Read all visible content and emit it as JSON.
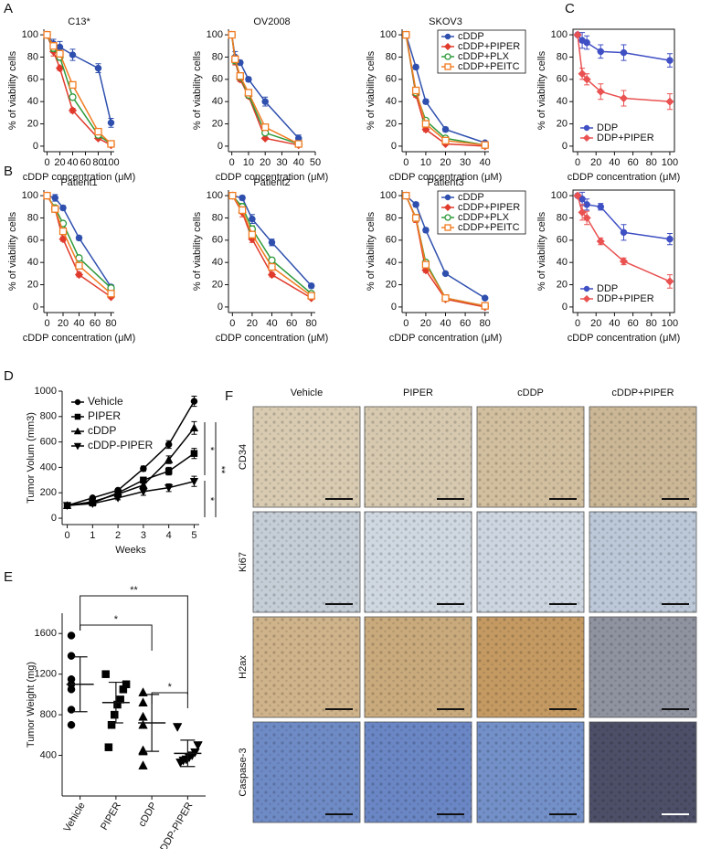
{
  "chart_data": [
    {
      "type": "line",
      "panel": "A",
      "title": "C13*",
      "xlabel": "cDDP concentration (μM)",
      "ylabel": "% of viability cells",
      "x": [
        0,
        10,
        20,
        40,
        80,
        100
      ],
      "xlim": [
        -5,
        105
      ],
      "xticks": [
        0,
        20,
        40,
        60,
        80,
        100
      ],
      "ylim": [
        -5,
        105
      ],
      "yticks": [
        0,
        20,
        40,
        60,
        80,
        100
      ],
      "series": [
        {
          "name": "cDDP",
          "color": "#2e4fae",
          "marker": "circle",
          "values": [
            100,
            92,
            89,
            82,
            70,
            21
          ],
          "errors": [
            1,
            4,
            5,
            5,
            4,
            4
          ]
        },
        {
          "name": "cDDP+PIPER",
          "color": "#e03a2c",
          "marker": "diamond",
          "values": [
            100,
            85,
            70,
            32,
            7,
            1
          ],
          "errors": [
            1,
            4,
            2,
            2,
            1,
            1
          ]
        },
        {
          "name": "cDDP+PLX",
          "color": "#2e9a3a",
          "marker": "open-circle",
          "values": [
            100,
            88,
            80,
            44,
            10,
            2
          ],
          "errors": [
            1,
            3,
            3,
            2,
            2,
            1
          ]
        },
        {
          "name": "cDDP+PEITC",
          "color": "#f07c22",
          "marker": "open-square",
          "values": [
            100,
            90,
            83,
            55,
            13,
            2
          ],
          "errors": [
            1,
            3,
            3,
            2,
            2,
            1
          ]
        }
      ]
    },
    {
      "type": "line",
      "title": "OV2008",
      "xlabel": "cDDP concentration (μM)",
      "ylabel": "% of viability cells",
      "x": [
        0,
        2,
        5,
        10,
        20,
        40
      ],
      "xlim": [
        -2,
        50
      ],
      "xticks": [
        0,
        10,
        20,
        30,
        40,
        50
      ],
      "ylim": [
        -5,
        105
      ],
      "yticks": [
        0,
        20,
        40,
        60,
        80,
        100
      ],
      "series": [
        {
          "name": "cDDP",
          "color": "#2e4fae",
          "marker": "circle",
          "values": [
            100,
            80,
            75,
            60,
            40,
            7
          ],
          "errors": [
            1,
            5,
            2,
            2,
            4,
            3
          ]
        },
        {
          "name": "cDDP+PIPER",
          "color": "#e03a2c",
          "marker": "diamond",
          "values": [
            100,
            76,
            60,
            45,
            7,
            1
          ],
          "errors": [
            1,
            3,
            2,
            2,
            1,
            1
          ]
        },
        {
          "name": "cDDP+PLX",
          "color": "#2e9a3a",
          "marker": "open-circle",
          "values": [
            100,
            77,
            62,
            46,
            12,
            2
          ],
          "errors": [
            1,
            3,
            2,
            2,
            2,
            1
          ]
        },
        {
          "name": "cDDP+PEITC",
          "color": "#f07c22",
          "marker": "open-square",
          "values": [
            100,
            78,
            63,
            48,
            17,
            2
          ],
          "errors": [
            1,
            3,
            2,
            2,
            2,
            1
          ]
        }
      ]
    },
    {
      "type": "line",
      "title": "SKOV3",
      "xlabel": "cDDP concentration (μM)",
      "ylabel": "% of viability cells",
      "legend": "upper right",
      "x": [
        0,
        5,
        10,
        20,
        40
      ],
      "xlim": [
        -2,
        42
      ],
      "xticks": [
        0,
        10,
        20,
        30,
        40
      ],
      "ylim": [
        -5,
        105
      ],
      "yticks": [
        0,
        20,
        40,
        60,
        80,
        100
      ],
      "series": [
        {
          "name": "cDDP",
          "color": "#2e4fae",
          "marker": "circle",
          "values": [
            100,
            71,
            40,
            15,
            3
          ],
          "errors": [
            1,
            2,
            2,
            2,
            1
          ]
        },
        {
          "name": "cDDP+PIPER",
          "color": "#e03a2c",
          "marker": "diamond",
          "values": [
            100,
            46,
            15,
            2,
            0
          ],
          "errors": [
            1,
            2,
            2,
            1,
            1
          ]
        },
        {
          "name": "cDDP+PLX",
          "color": "#2e9a3a",
          "marker": "open-circle",
          "values": [
            100,
            48,
            23,
            7,
            1
          ],
          "errors": [
            1,
            2,
            2,
            1,
            1
          ]
        },
        {
          "name": "cDDP+PEITC",
          "color": "#f07c22",
          "marker": "open-square",
          "values": [
            100,
            50,
            20,
            5,
            1
          ],
          "errors": [
            1,
            2,
            2,
            1,
            1
          ]
        }
      ]
    },
    {
      "type": "line",
      "panel": "C",
      "frame": true,
      "xlabel": "cDDP concentration (μM)",
      "ylabel": "% of viability cells",
      "legend": "lower left",
      "x": [
        0,
        5,
        10,
        25,
        50,
        100
      ],
      "xlim": [
        -5,
        105
      ],
      "xticks": [
        0,
        20,
        40,
        60,
        80,
        100
      ],
      "ylim": [
        -5,
        105
      ],
      "yticks": [
        0,
        20,
        40,
        60,
        80,
        100
      ],
      "series": [
        {
          "name": "DDP",
          "color": "#3f4fc4",
          "marker": "circle",
          "values": [
            100,
            95,
            93,
            85,
            84,
            77
          ],
          "errors": [
            1,
            7,
            6,
            6,
            7,
            6
          ]
        },
        {
          "name": "DDP+PIPER",
          "color": "#ea5252",
          "marker": "diamond",
          "values": [
            100,
            65,
            60,
            49,
            43,
            40
          ],
          "errors": [
            1,
            5,
            5,
            7,
            7,
            7
          ]
        }
      ]
    },
    {
      "type": "line",
      "panel": "B",
      "title": "Patient1",
      "xlabel": "cDDP concentration (μM)",
      "ylabel": "% of viability cells",
      "x": [
        0,
        10,
        20,
        40,
        80
      ],
      "xlim": [
        -4,
        84
      ],
      "xticks": [
        0,
        20,
        40,
        60,
        80
      ],
      "ylim": [
        -5,
        105
      ],
      "yticks": [
        0,
        20,
        40,
        60,
        80,
        100
      ],
      "series": [
        {
          "name": "cDDP",
          "color": "#2e4fae",
          "marker": "circle",
          "values": [
            100,
            98,
            89,
            62,
            18
          ],
          "errors": [
            1,
            3,
            2,
            2,
            2
          ]
        },
        {
          "name": "cDDP+PIPER",
          "color": "#e03a2c",
          "marker": "diamond",
          "values": [
            100,
            88,
            61,
            29,
            9
          ],
          "errors": [
            1,
            2,
            2,
            2,
            1
          ]
        },
        {
          "name": "cDDP+PLX",
          "color": "#2e9a3a",
          "marker": "open-circle",
          "values": [
            100,
            89,
            75,
            44,
            17
          ],
          "errors": [
            1,
            2,
            2,
            2,
            1
          ]
        },
        {
          "name": "cDDP+PEITC",
          "color": "#f07c22",
          "marker": "open-square",
          "values": [
            100,
            88,
            68,
            37,
            12
          ],
          "errors": [
            1,
            2,
            2,
            2,
            1
          ]
        }
      ]
    },
    {
      "type": "line",
      "title": "Patient2",
      "xlabel": "cDDP concentration (μM)",
      "ylabel": "% of viability cells",
      "x": [
        0,
        10,
        20,
        40,
        80
      ],
      "xlim": [
        -4,
        84
      ],
      "xticks": [
        0,
        20,
        40,
        60,
        80
      ],
      "ylim": [
        -5,
        105
      ],
      "yticks": [
        0,
        20,
        40,
        60,
        80,
        100
      ],
      "series": [
        {
          "name": "cDDP",
          "color": "#2e4fae",
          "marker": "circle",
          "values": [
            100,
            98,
            79,
            58,
            19
          ],
          "errors": [
            1,
            2,
            4,
            3,
            2
          ]
        },
        {
          "name": "cDDP+PIPER",
          "color": "#e03a2c",
          "marker": "diamond",
          "values": [
            100,
            85,
            61,
            29,
            8
          ],
          "errors": [
            1,
            4,
            3,
            2,
            1
          ]
        },
        {
          "name": "cDDP+PLX",
          "color": "#2e9a3a",
          "marker": "open-circle",
          "values": [
            100,
            90,
            70,
            42,
            12
          ],
          "errors": [
            1,
            3,
            3,
            2,
            1
          ]
        },
        {
          "name": "cDDP+PEITC",
          "color": "#f07c22",
          "marker": "open-square",
          "values": [
            100,
            87,
            65,
            36,
            10
          ],
          "errors": [
            1,
            3,
            3,
            2,
            1
          ]
        }
      ]
    },
    {
      "type": "line",
      "title": "Patient3",
      "xlabel": "cDDP concentration (μM)",
      "ylabel": "% of viability cells",
      "legend": "upper right",
      "x": [
        0,
        10,
        20,
        40,
        80
      ],
      "xlim": [
        -4,
        84
      ],
      "xticks": [
        0,
        20,
        40,
        60,
        80
      ],
      "ylim": [
        -5,
        105
      ],
      "yticks": [
        0,
        20,
        40,
        60,
        80,
        100
      ],
      "series": [
        {
          "name": "cDDP",
          "color": "#2e4fae",
          "marker": "circle",
          "values": [
            100,
            92,
            69,
            30,
            8
          ],
          "errors": [
            1,
            2,
            2,
            1,
            1
          ]
        },
        {
          "name": "cDDP+PIPER",
          "color": "#e03a2c",
          "marker": "diamond",
          "values": [
            100,
            79,
            33,
            7,
            0
          ],
          "errors": [
            1,
            3,
            2,
            1,
            1
          ]
        },
        {
          "name": "cDDP+PLX",
          "color": "#2e9a3a",
          "marker": "open-circle",
          "values": [
            100,
            80,
            40,
            8,
            1
          ],
          "errors": [
            1,
            3,
            2,
            1,
            1
          ]
        },
        {
          "name": "cDDP+PEITC",
          "color": "#f07c22",
          "marker": "open-square",
          "values": [
            100,
            80,
            38,
            8,
            1
          ],
          "errors": [
            1,
            3,
            2,
            1,
            1
          ]
        }
      ]
    },
    {
      "type": "line",
      "frame": true,
      "xlabel": "cDDP concentration (μM)",
      "ylabel": "% of viability cells",
      "legend": "lower left",
      "x": [
        0,
        5,
        10,
        25,
        50,
        100
      ],
      "xlim": [
        -5,
        105
      ],
      "xticks": [
        0,
        20,
        40,
        60,
        80,
        100
      ],
      "ylim": [
        -5,
        105
      ],
      "yticks": [
        0,
        20,
        40,
        60,
        80,
        100
      ],
      "series": [
        {
          "name": "DDP",
          "color": "#3f4fc4",
          "marker": "circle",
          "values": [
            100,
            97,
            92,
            90,
            67,
            61
          ],
          "errors": [
            1,
            6,
            5,
            3,
            7,
            5
          ]
        },
        {
          "name": "DDP+PIPER",
          "color": "#ea5252",
          "marker": "diamond",
          "values": [
            100,
            85,
            80,
            59,
            41,
            23
          ],
          "errors": [
            1,
            7,
            6,
            3,
            3,
            6
          ]
        }
      ]
    },
    {
      "type": "line",
      "panel": "D",
      "xlabel": "Weeks",
      "ylabel": "Tumor Volum (mm3)",
      "legend": "upper left",
      "annotations": [
        "*",
        "**",
        "*"
      ],
      "x": [
        0,
        1,
        2,
        3,
        4,
        5
      ],
      "xlim": [
        -0.2,
        5.2
      ],
      "xticks": [
        0,
        1,
        2,
        3,
        4,
        5
      ],
      "ylim": [
        -50,
        1000
      ],
      "yticks": [
        0,
        200,
        400,
        600,
        800,
        1000
      ],
      "series": [
        {
          "name": "Vehicle",
          "color": "#000000",
          "marker": "circle",
          "values": [
            100,
            160,
            220,
            390,
            580,
            920
          ],
          "errors": [
            10,
            10,
            15,
            20,
            30,
            40
          ]
        },
        {
          "name": "PIPER",
          "color": "#000000",
          "marker": "square",
          "values": [
            100,
            120,
            200,
            300,
            370,
            510
          ],
          "errors": [
            10,
            10,
            15,
            20,
            30,
            40
          ]
        },
        {
          "name": "cDDP",
          "color": "#000000",
          "marker": "triangle",
          "values": [
            100,
            130,
            190,
            260,
            460,
            710
          ],
          "errors": [
            10,
            10,
            15,
            20,
            30,
            50
          ]
        },
        {
          "name": "cDDP-PIPER",
          "color": "#000000",
          "marker": "triangle-down",
          "values": [
            100,
            115,
            160,
            210,
            240,
            290
          ],
          "errors": [
            10,
            10,
            15,
            30,
            30,
            40
          ]
        }
      ]
    },
    {
      "type": "scatter",
      "panel": "E",
      "ylabel": "Tumor Weight (mg)",
      "annotations": [
        "**",
        "*",
        "*"
      ],
      "categories": [
        "Vehicle",
        "PIPER",
        "cDDP",
        "cDDP-PIPER"
      ],
      "markers": [
        "circle",
        "square",
        "triangle",
        "triangle-down"
      ],
      "color": "#000000",
      "values": [
        [
          1580,
          1380,
          1150,
          1100,
          1050,
          850,
          700
        ],
        [
          1200,
          1100,
          1050,
          950,
          900,
          800,
          700,
          480
        ],
        [
          1020,
          920,
          780,
          700,
          450,
          440,
          300
        ],
        [
          680,
          500,
          430,
          400,
          380,
          360,
          350,
          330
        ]
      ],
      "means": [
        1100,
        920,
        720,
        420
      ],
      "errors": [
        270,
        200,
        280,
        130
      ],
      "ylim": [
        0,
        1800
      ],
      "yticks": [
        400,
        800,
        1200,
        1600
      ]
    }
  ],
  "figure_f": {
    "panel": "F",
    "columns": [
      "Vehicle",
      "PIPER",
      "cDDP",
      "cDDP+PIPER"
    ],
    "rows": [
      "CD34",
      "Ki67",
      "H2ax",
      "Caspase-3"
    ]
  }
}
